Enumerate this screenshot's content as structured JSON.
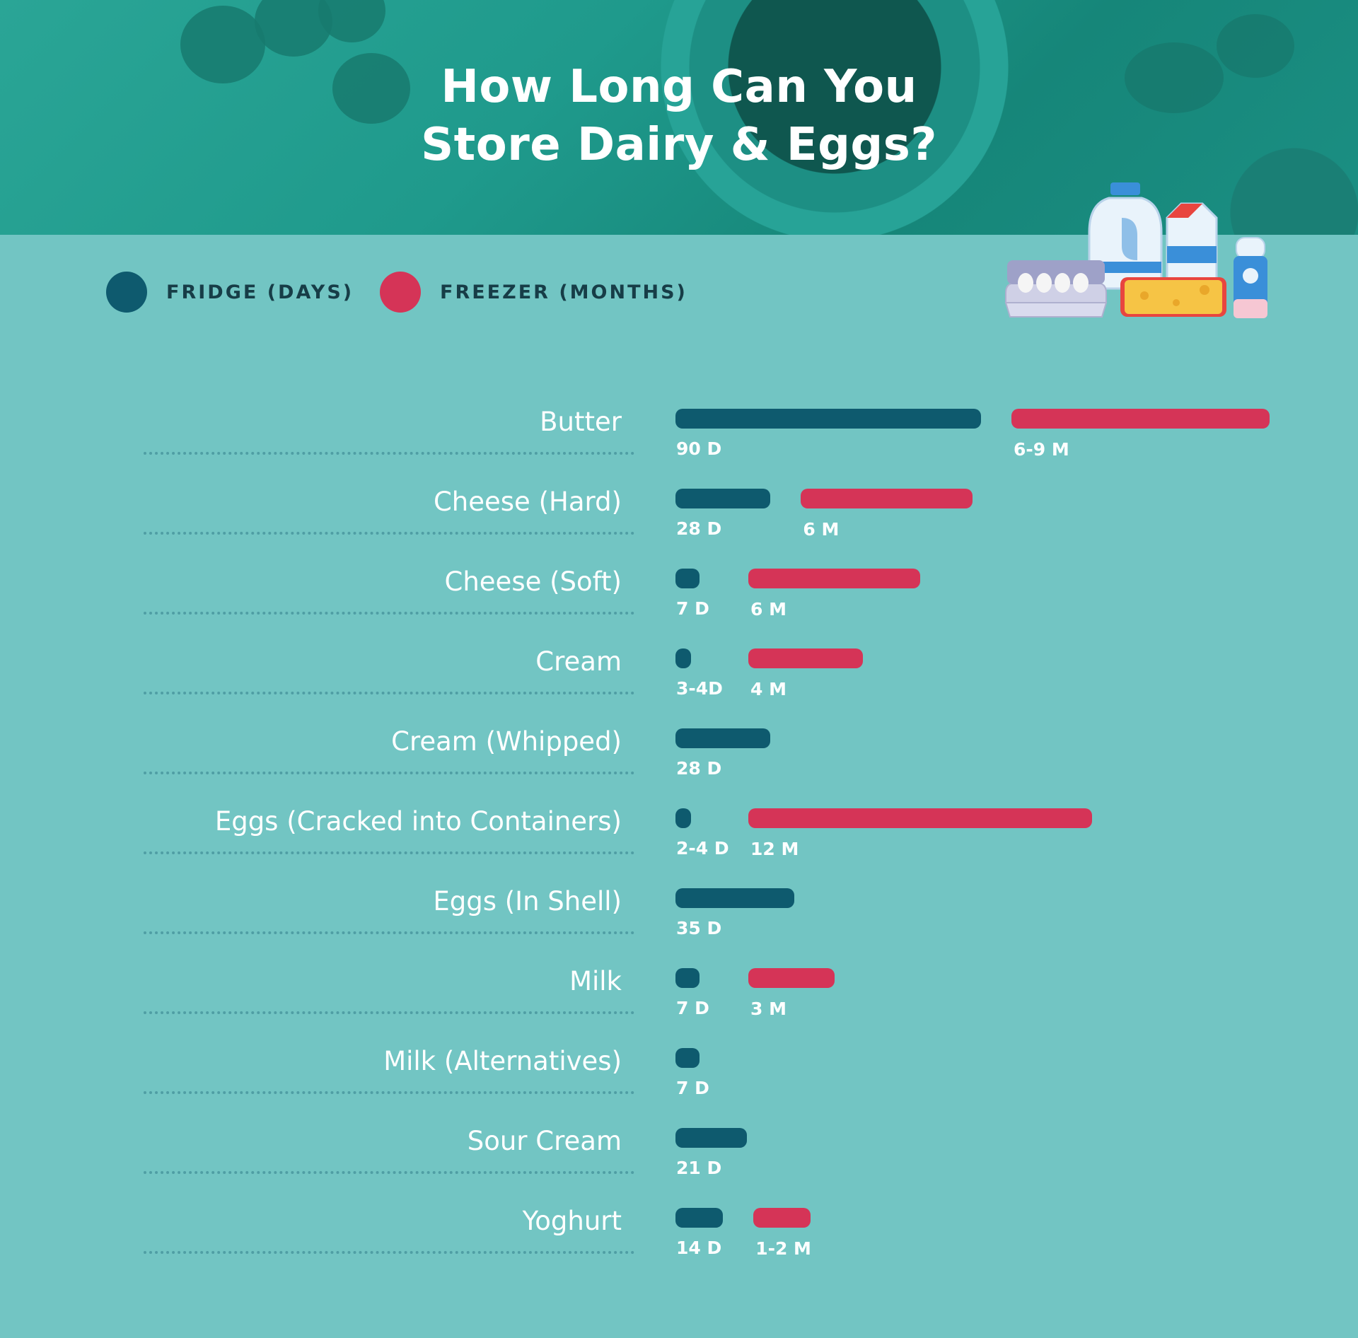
{
  "colors": {
    "fridge": "#0e5a6e",
    "freezer": "#d53457",
    "background": "#72c5c3",
    "header": "#1f9a8c"
  },
  "header": {
    "title_line1": "How Long Can You",
    "title_line2": "Store Dairy & Eggs?"
  },
  "legend": {
    "fridge_label": "FRIDGE (DAYS)",
    "freezer_label": "FREEZER (MONTHS)"
  },
  "illustration_icons": [
    "egg-carton-icon",
    "milk-jug-icon",
    "milk-carton-icon",
    "cheese-icon",
    "yoghurt-bottle-icon"
  ],
  "chart_data": {
    "type": "bar",
    "orientation": "horizontal",
    "title": "How Long Can You Store Dairy & Eggs?",
    "categories": [
      "Butter",
      "Cheese (Hard)",
      "Cheese (Soft)",
      "Cream",
      "Cream (Whipped)",
      "Eggs (Cracked into Containers)",
      "Eggs (In Shell)",
      "Milk",
      "Milk (Alternatives)",
      "Sour Cream",
      "Yoghurt"
    ],
    "series": [
      {
        "name": "FRIDGE (DAYS)",
        "values": [
          90,
          28,
          7,
          4,
          28,
          4,
          35,
          7,
          7,
          21,
          14
        ],
        "labels": [
          "90 D",
          "28 D",
          "7 D",
          "3-4D",
          "28 D",
          "2-4 D",
          "35 D",
          "7 D",
          "7 D",
          "21 D",
          "14 D"
        ]
      },
      {
        "name": "FREEZER (MONTHS)",
        "values": [
          9,
          6,
          6,
          4,
          null,
          12,
          null,
          3,
          null,
          null,
          2
        ],
        "labels": [
          "6-9 M",
          "6 M",
          "6 M",
          "4 M",
          "",
          "12 M",
          "",
          "3 M",
          "",
          "",
          "1-2 M"
        ]
      }
    ]
  }
}
